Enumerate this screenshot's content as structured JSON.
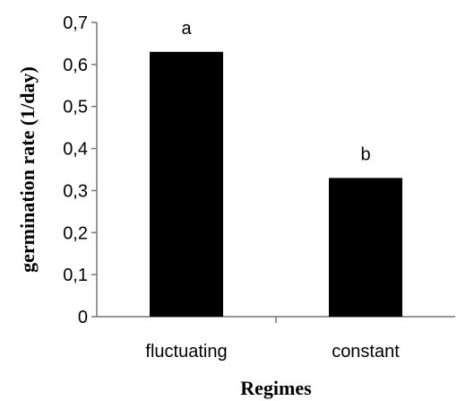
{
  "chart_data": {
    "type": "bar",
    "categories": [
      "fluctuating",
      "constant"
    ],
    "values": [
      0.63,
      0.33
    ],
    "annotations": [
      "a",
      "b"
    ],
    "xlabel": "Regimes",
    "ylabel": "germination rate (1/day)",
    "ylim": [
      0,
      0.7
    ],
    "yticks": [
      "0",
      "0,1",
      "0,2",
      "0,3",
      "0,4",
      "0,5",
      "0,6",
      "0,7"
    ],
    "bar_color": "#000000",
    "grid": false,
    "legend": "none"
  }
}
